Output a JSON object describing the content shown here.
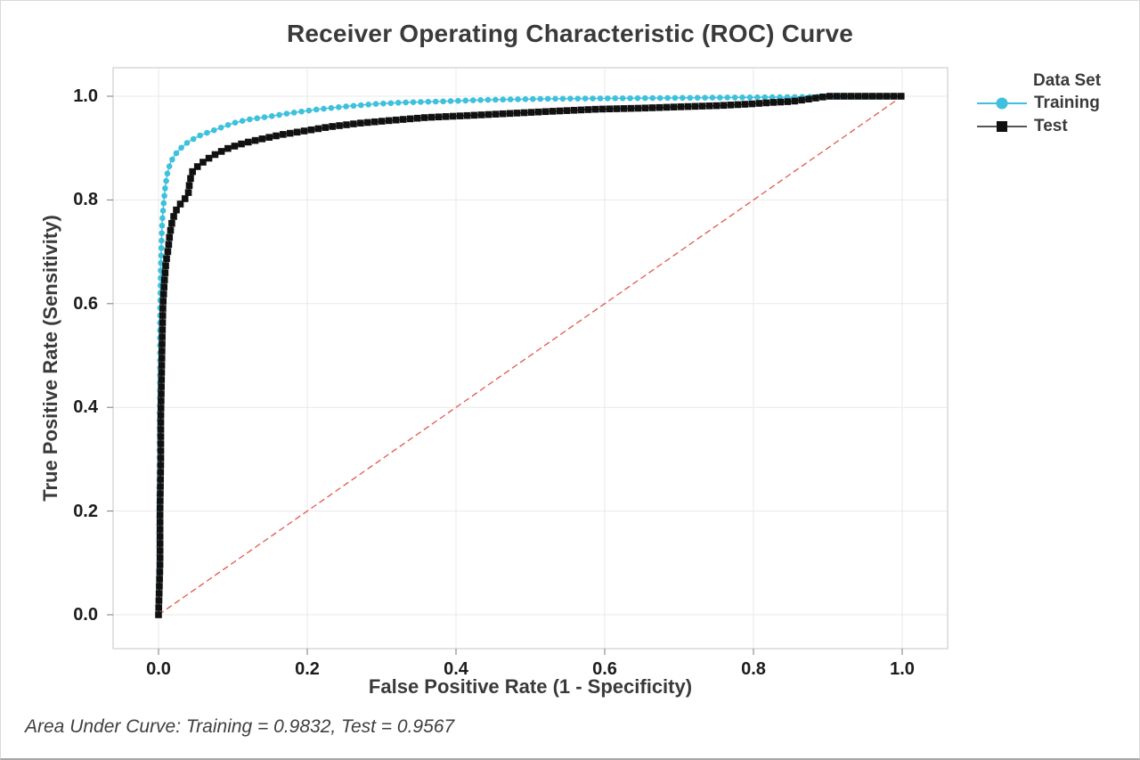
{
  "chart_data": {
    "type": "line",
    "subtype": "roc-curve",
    "title": "Receiver Operating Characteristic (ROC) Curve",
    "xlabel": "False Positive Rate (1 - Specificity)",
    "ylabel": "True Positive Rate (Sensitivity)",
    "xlim": [
      0,
      1
    ],
    "ylim": [
      0,
      1
    ],
    "grid": true,
    "xticks": [
      0,
      0.2,
      0.4,
      0.6,
      0.8,
      1.0
    ],
    "xtick_labels": [
      "0.0",
      "0.2",
      "0.4",
      "0.6",
      "0.8",
      "1.0"
    ],
    "yticks": [
      0,
      0.2,
      0.4,
      0.6,
      0.8,
      1.0
    ],
    "ytick_labels": [
      "0.0",
      "0.2",
      "0.4",
      "0.6",
      "0.8",
      "1.0"
    ],
    "legend": {
      "title": "Data Set",
      "position": "right"
    },
    "reference_line": {
      "from": [
        0,
        0
      ],
      "to": [
        1,
        1
      ],
      "color": "#e4574e",
      "style": "dashed"
    },
    "colors": {
      "grid": "#e9e9e9",
      "frame": "#cfcfcf",
      "tick": "#7a7a7a"
    },
    "series": [
      {
        "name": "Training",
        "marker": "circle",
        "color": "#3ec1dc",
        "auc": 0.9832,
        "points": [
          [
            0,
            0
          ],
          [
            0.001,
            0.1
          ],
          [
            0.001,
            0.22
          ],
          [
            0.0015,
            0.34
          ],
          [
            0.002,
            0.46
          ],
          [
            0.002,
            0.56
          ],
          [
            0.0025,
            0.62
          ],
          [
            0.003,
            0.67
          ],
          [
            0.004,
            0.72
          ],
          [
            0.005,
            0.76
          ],
          [
            0.007,
            0.795
          ],
          [
            0.009,
            0.825
          ],
          [
            0.012,
            0.852
          ],
          [
            0.016,
            0.872
          ],
          [
            0.022,
            0.887
          ],
          [
            0.03,
            0.9
          ],
          [
            0.04,
            0.912
          ],
          [
            0.055,
            0.924
          ],
          [
            0.07,
            0.932
          ],
          [
            0.085,
            0.94
          ],
          [
            0.1,
            0.948
          ],
          [
            0.12,
            0.955
          ],
          [
            0.145,
            0.96
          ],
          [
            0.175,
            0.967
          ],
          [
            0.21,
            0.974
          ],
          [
            0.25,
            0.98
          ],
          [
            0.29,
            0.985
          ],
          [
            0.33,
            0.988
          ],
          [
            0.38,
            0.99
          ],
          [
            0.44,
            0.993
          ],
          [
            0.52,
            0.995
          ],
          [
            0.62,
            0.996
          ],
          [
            0.72,
            0.997
          ],
          [
            0.81,
            0.998
          ],
          [
            0.9,
            0.999
          ],
          [
            1,
            1
          ]
        ]
      },
      {
        "name": "Test",
        "marker": "square",
        "color": "#111111",
        "auc": 0.9567,
        "points": [
          [
            0,
            0
          ],
          [
            0.002,
            0.1
          ],
          [
            0.002,
            0.2
          ],
          [
            0.003,
            0.3
          ],
          [
            0.003,
            0.38
          ],
          [
            0.004,
            0.46
          ],
          [
            0.005,
            0.54
          ],
          [
            0.006,
            0.6
          ],
          [
            0.008,
            0.645
          ],
          [
            0.01,
            0.68
          ],
          [
            0.013,
            0.705
          ],
          [
            0.015,
            0.732
          ],
          [
            0.018,
            0.756
          ],
          [
            0.022,
            0.776
          ],
          [
            0.028,
            0.79
          ],
          [
            0.035,
            0.801
          ],
          [
            0.04,
            0.812
          ],
          [
            0.042,
            0.836
          ],
          [
            0.046,
            0.856
          ],
          [
            0.056,
            0.869
          ],
          [
            0.066,
            0.879
          ],
          [
            0.079,
            0.89
          ],
          [
            0.096,
            0.901
          ],
          [
            0.116,
            0.91
          ],
          [
            0.14,
            0.918
          ],
          [
            0.166,
            0.926
          ],
          [
            0.196,
            0.933
          ],
          [
            0.23,
            0.941
          ],
          [
            0.27,
            0.948
          ],
          [
            0.31,
            0.953
          ],
          [
            0.36,
            0.959
          ],
          [
            0.42,
            0.963
          ],
          [
            0.475,
            0.967
          ],
          [
            0.53,
            0.971
          ],
          [
            0.59,
            0.975
          ],
          [
            0.65,
            0.977
          ],
          [
            0.71,
            0.98
          ],
          [
            0.755,
            0.982
          ],
          [
            0.795,
            0.985
          ],
          [
            0.825,
            0.988
          ],
          [
            0.852,
            0.99
          ],
          [
            0.872,
            0.994
          ],
          [
            0.886,
            0.997
          ],
          [
            0.9,
            1
          ],
          [
            1,
            1
          ]
        ]
      }
    ],
    "annotation": "Area Under Curve: Training = 0.9832, Test = 0.9567"
  }
}
